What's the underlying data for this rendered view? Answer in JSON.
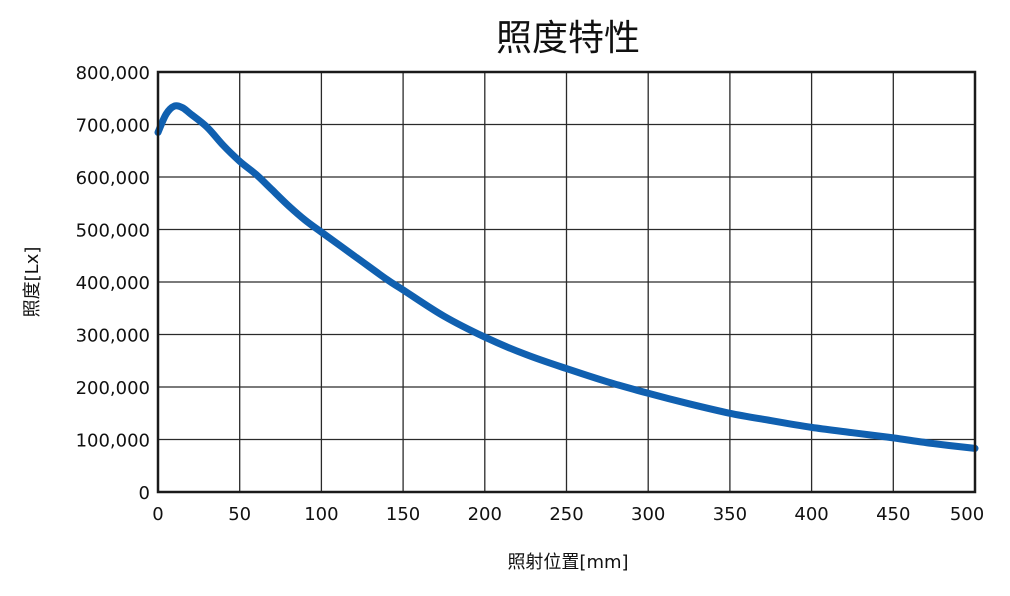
{
  "chart_data": {
    "type": "line",
    "title": "照度特性",
    "xlabel": "照射位置[mm]",
    "ylabel": "照度[Lx]",
    "xlim": [
      0,
      500
    ],
    "ylim": [
      0,
      800000
    ],
    "xticks": [
      0,
      50,
      100,
      150,
      200,
      250,
      300,
      350,
      400,
      450,
      500
    ],
    "yticks": [
      0,
      100000,
      200000,
      300000,
      400000,
      500000,
      600000,
      700000,
      800000
    ],
    "xtick_labels": [
      "0",
      "50",
      "100",
      "150",
      "200",
      "250",
      "300",
      "350",
      "400",
      "450",
      "500"
    ],
    "ytick_labels": [
      "0",
      "100,000",
      "200,000",
      "300,000",
      "400,000",
      "500,000",
      "600,000",
      "700,000",
      "800,000"
    ],
    "grid": true,
    "color": "#1060b0",
    "series": [
      {
        "x": [
          0,
          5,
          10,
          15,
          20,
          30,
          40,
          50,
          60,
          70,
          80,
          90,
          100,
          120,
          140,
          150,
          175,
          200,
          225,
          250,
          275,
          300,
          325,
          350,
          375,
          400,
          425,
          450,
          475,
          500
        ],
        "y": [
          685000,
          720000,
          735000,
          732000,
          720000,
          695000,
          660000,
          630000,
          605000,
          575000,
          545000,
          518000,
          495000,
          450000,
          405000,
          385000,
          335000,
          295000,
          262000,
          235000,
          210000,
          188000,
          168000,
          150000,
          136000,
          123000,
          113000,
          103000,
          92000,
          83000
        ]
      }
    ]
  }
}
